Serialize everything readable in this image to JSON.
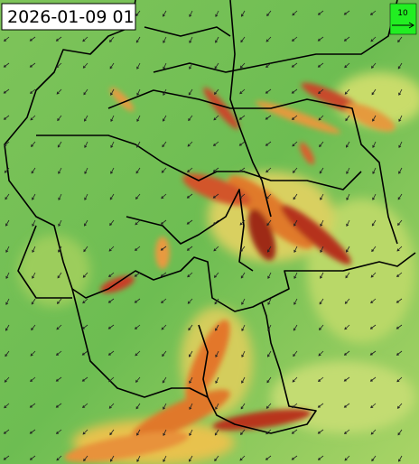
{
  "timestamp": "2026-01-09 01",
  "legend": {
    "label": "10"
  }
}
